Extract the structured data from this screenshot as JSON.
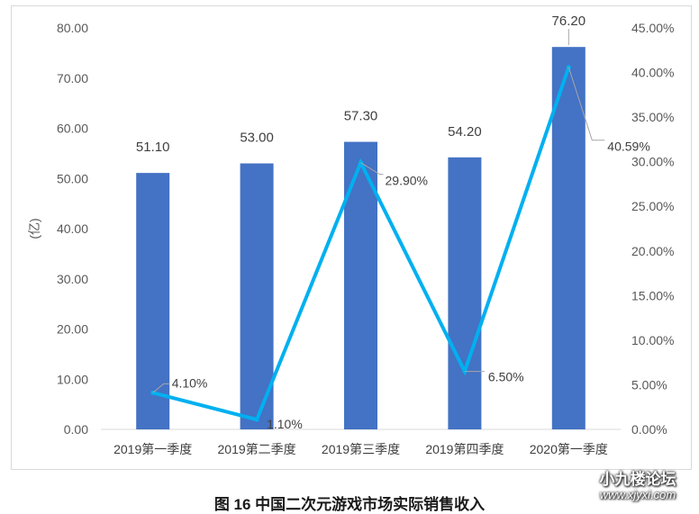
{
  "chart_data": {
    "type": "bar+line",
    "categories": [
      "2019第一季度",
      "2019第二季度",
      "2019第三季度",
      "2019第四季度",
      "2020第一季度"
    ],
    "series": [
      {
        "type": "bar",
        "axis": "left",
        "values": [
          51.1,
          53.0,
          57.3,
          54.2,
          76.2
        ],
        "labels": [
          "51.10",
          "53.00",
          "57.30",
          "54.20",
          "76.20"
        ],
        "color": "#4472c4"
      },
      {
        "type": "line",
        "axis": "right",
        "values": [
          4.1,
          1.1,
          29.9,
          6.5,
          40.59
        ],
        "labels": [
          "4.10%",
          "1.10%",
          "29.90%",
          "6.50%",
          "40.59%"
        ],
        "color": "#00b0f0"
      }
    ],
    "ylabel": "(亿)",
    "ylim": [
      0,
      80
    ],
    "y2lim": [
      0,
      45
    ],
    "yticks": [
      "0.00",
      "10.00",
      "20.00",
      "30.00",
      "40.00",
      "50.00",
      "60.00",
      "70.00",
      "80.00"
    ],
    "y2ticks": [
      "0.00%",
      "5.00%",
      "10.00%",
      "15.00%",
      "20.00%",
      "25.00%",
      "30.00%",
      "35.00%",
      "40.00%",
      "45.00%"
    ],
    "grid": false
  },
  "caption": "图 16  中国二次元游戏市场实际销售收入",
  "watermark": {
    "line1": "小九楼论坛",
    "line2": "www.xjyxi.com"
  }
}
